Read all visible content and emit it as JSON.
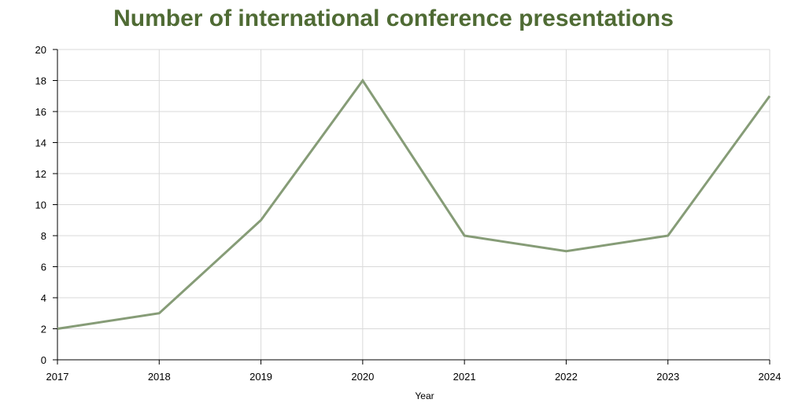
{
  "chart_data": {
    "type": "line",
    "title": "Number of international conference presentations",
    "xlabel": "Year",
    "ylabel": "",
    "x": [
      "2017",
      "2018",
      "2019",
      "2020",
      "2021",
      "2022",
      "2023",
      "2024"
    ],
    "series": [
      {
        "values": [
          2,
          3,
          9,
          18,
          8,
          7,
          8,
          17
        ]
      }
    ],
    "ylim": [
      0,
      20
    ],
    "yticks": [
      "0",
      "2",
      "4",
      "6",
      "8",
      "10",
      "12",
      "14",
      "16",
      "18",
      "20"
    ],
    "grid": true,
    "legend": "none",
    "colors": {
      "title": "#4f6b34",
      "line": "#869c77",
      "grid": "#d9d9d9",
      "axis": "#000000"
    }
  }
}
